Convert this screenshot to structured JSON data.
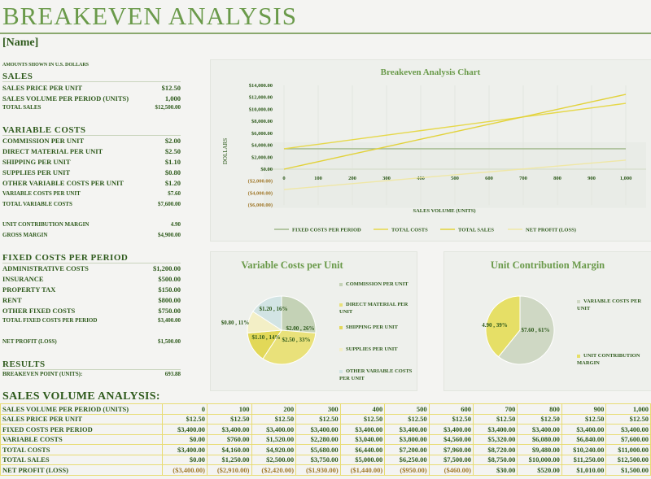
{
  "title": "BREAKEVEN ANALYSIS",
  "name": "[Name]",
  "note": "AMOUNTS SHOWN IN U.S. DOLLARS",
  "sections": [
    {
      "heading": "SALES",
      "top": 88,
      "rows": [
        {
          "label": "SALES PRICE PER UNIT",
          "value": "$12.50",
          "top": 103
        },
        {
          "label": "SALES VOLUME PER PERIOD (UNITS)",
          "value": "1,000",
          "top": 116
        },
        {
          "label": "TOTAL SALES",
          "value": "$12,500.00",
          "top": 128,
          "small": true
        }
      ]
    },
    {
      "heading": "VARIABLE COSTS",
      "top": 154,
      "rows": [
        {
          "label": "COMMISSION PER UNIT",
          "value": "$2.00",
          "top": 168
        },
        {
          "label": "DIRECT MATERIAL PER UNIT",
          "value": "$2.50",
          "top": 181
        },
        {
          "label": "SHIPPING PER UNIT",
          "value": "$1.10",
          "top": 194
        },
        {
          "label": "SUPPLIES PER UNIT",
          "value": "$0.80",
          "top": 207
        },
        {
          "label": "OTHER VARIABLE COSTS PER UNIT",
          "value": "$1.20",
          "top": 220
        },
        {
          "label": "VARIABLE COSTS PER UNIT",
          "value": "$7.60",
          "top": 234,
          "small": true
        },
        {
          "label": "TOTAL VARIABLE COSTS",
          "value": "$7,600.00",
          "top": 247,
          "small": true
        },
        {
          "label": "UNIT CONTRIBUTION MARGIN",
          "value": "4.90",
          "top": 272,
          "small": true
        },
        {
          "label": "GROSS MARGIN",
          "value": "$4,900.00",
          "top": 285,
          "small": true
        }
      ]
    },
    {
      "heading": "FIXED COSTS PER PERIOD",
      "top": 311,
      "rows": [
        {
          "label": "ADMINISTRATIVE COSTS",
          "value": "$1,200.00",
          "top": 325
        },
        {
          "label": "INSURANCE",
          "value": "$500.00",
          "top": 338
        },
        {
          "label": "PROPERTY TAX",
          "value": "$150.00",
          "top": 351
        },
        {
          "label": "RENT",
          "value": "$800.00",
          "top": 364
        },
        {
          "label": "OTHER FIXED COSTS",
          "value": "$750.00",
          "top": 377
        },
        {
          "label": "TOTAL FIXED COSTS PER PERIOD",
          "value": "$3,400.00",
          "top": 390,
          "small": true
        },
        {
          "label": "NET PROFIT (LOSS)",
          "value": "$1,500.00",
          "top": 416,
          "small": true
        }
      ]
    },
    {
      "heading": "RESULTS",
      "top": 442,
      "rows": [
        {
          "label": "BREAKEVEN POINT (UNITS):",
          "value": "693.88",
          "top": 456,
          "small": true
        }
      ]
    }
  ],
  "colors": {
    "fixed": "#9fb78a",
    "costs": "#e6d84a",
    "sales": "#e2d23a",
    "profit": "#efe7a6",
    "neg": "#a0782a"
  },
  "chart_data": [
    {
      "type": "line",
      "title": "Breakeven Analysis Chart",
      "xlabel": "SALES VOLUME (UNITS)",
      "ylabel": "DOLLARS",
      "x": [
        0,
        100,
        200,
        300,
        400,
        500,
        600,
        700,
        800,
        900,
        1000
      ],
      "x_ticks": [
        "0",
        "100",
        "200",
        "300",
        "400",
        "500",
        "600",
        "700",
        "800",
        "900",
        "1,000"
      ],
      "ylim": [
        -6000,
        14000
      ],
      "y_ticks": [
        {
          "v": 14000,
          "t": "$14,000.00"
        },
        {
          "v": 12000,
          "t": "$12,000.00"
        },
        {
          "v": 10000,
          "t": "$10,000.00"
        },
        {
          "v": 8000,
          "t": "$8,000.00"
        },
        {
          "v": 6000,
          "t": "$6,000.00"
        },
        {
          "v": 4000,
          "t": "$4,000.00"
        },
        {
          "v": 2000,
          "t": "$2,000.00"
        },
        {
          "v": 0,
          "t": "$0.00"
        },
        {
          "v": -2000,
          "t": "($2,000.00)"
        },
        {
          "v": -4000,
          "t": "($4,000.00)"
        },
        {
          "v": -6000,
          "t": "($6,000.00)"
        }
      ],
      "series": [
        {
          "name": "FIXED COSTS PER PERIOD",
          "key": "fixed",
          "values": [
            3400,
            3400,
            3400,
            3400,
            3400,
            3400,
            3400,
            3400,
            3400,
            3400,
            3400
          ]
        },
        {
          "name": "TOTAL COSTS",
          "key": "costs",
          "values": [
            3400,
            4160,
            4920,
            5680,
            6440,
            7200,
            7960,
            8720,
            9480,
            10240,
            11000
          ]
        },
        {
          "name": "TOTAL SALES",
          "key": "sales",
          "values": [
            0,
            1250,
            2500,
            3750,
            5000,
            6250,
            7500,
            8750,
            10000,
            11250,
            12500
          ]
        },
        {
          "name": "NET PROFIT (LOSS)",
          "key": "profit",
          "values": [
            -3400,
            -2910,
            -2420,
            -1930,
            -1440,
            -950,
            -460,
            30,
            520,
            1010,
            1500
          ]
        }
      ],
      "legend": "bottom"
    },
    {
      "type": "pie",
      "title": "Variable Costs per Unit",
      "slices": [
        {
          "name": "COMMISSION PER UNIT",
          "value": 2.0,
          "label": "$2.00 , 26%",
          "color": "#c4d2b6"
        },
        {
          "name": "DIRECT MATERIAL PER UNIT",
          "value": 2.5,
          "label": "$2.50 , 33%",
          "color": "#e9e17a"
        },
        {
          "name": "SHIPPING PER UNIT",
          "value": 1.1,
          "label": "$1.10 , 14%",
          "color": "#e2d858"
        },
        {
          "name": "SUPPLIES PER UNIT",
          "value": 0.8,
          "label": "$0.80 , 11%",
          "color": "#f3efc6"
        },
        {
          "name": "OTHER VARIABLE COSTS PER UNIT",
          "value": 1.2,
          "label": "$1.20 , 16%",
          "color": "#d2e4e4"
        }
      ]
    },
    {
      "type": "pie",
      "title": "Unit Contribution Margin",
      "slices": [
        {
          "name": "VARIABLE COSTS PER UNIT",
          "value": 7.6,
          "label": "$7.60 , 61%",
          "color": "#cfd8c4"
        },
        {
          "name": "UNIT CONTRIBUTION MARGIN",
          "value": 4.9,
          "label": "4.90 , 39%",
          "color": "#e6df66"
        }
      ]
    }
  ],
  "sva_title": "SALES VOLUME ANALYSIS:",
  "table": [
    [
      "SALES VOLUME PER PERIOD (UNITS)",
      "0",
      "100",
      "200",
      "300",
      "400",
      "500",
      "600",
      "700",
      "800",
      "900",
      "1,000"
    ],
    [
      "SALES PRICE PER UNIT",
      "$12.50",
      "$12.50",
      "$12.50",
      "$12.50",
      "$12.50",
      "$12.50",
      "$12.50",
      "$12.50",
      "$12.50",
      "$12.50",
      "$12.50"
    ],
    [
      "FIXED COSTS PER PERIOD",
      "$3,400.00",
      "$3,400.00",
      "$3,400.00",
      "$3,400.00",
      "$3,400.00",
      "$3,400.00",
      "$3,400.00",
      "$3,400.00",
      "$3,400.00",
      "$3,400.00",
      "$3,400.00"
    ],
    [
      "VARIABLE COSTS",
      "$0.00",
      "$760.00",
      "$1,520.00",
      "$2,280.00",
      "$3,040.00",
      "$3,800.00",
      "$4,560.00",
      "$5,320.00",
      "$6,080.00",
      "$6,840.00",
      "$7,600.00"
    ],
    [
      "TOTAL COSTS",
      "$3,400.00",
      "$4,160.00",
      "$4,920.00",
      "$5,680.00",
      "$6,440.00",
      "$7,200.00",
      "$7,960.00",
      "$8,720.00",
      "$9,480.00",
      "$10,240.00",
      "$11,000.00"
    ],
    [
      "TOTAL SALES",
      "$0.00",
      "$1,250.00",
      "$2,500.00",
      "$3,750.00",
      "$5,000.00",
      "$6,250.00",
      "$7,500.00",
      "$8,750.00",
      "$10,000.00",
      "$11,250.00",
      "$12,500.00"
    ],
    [
      "NET PROFIT (LOSS)",
      "($3,400.00)",
      "($2,910.00)",
      "($2,420.00)",
      "($1,930.00)",
      "($1,440.00)",
      "($950.00)",
      "($460.00)",
      "$30.00",
      "$520.00",
      "$1,010.00",
      "$1,500.00"
    ]
  ]
}
